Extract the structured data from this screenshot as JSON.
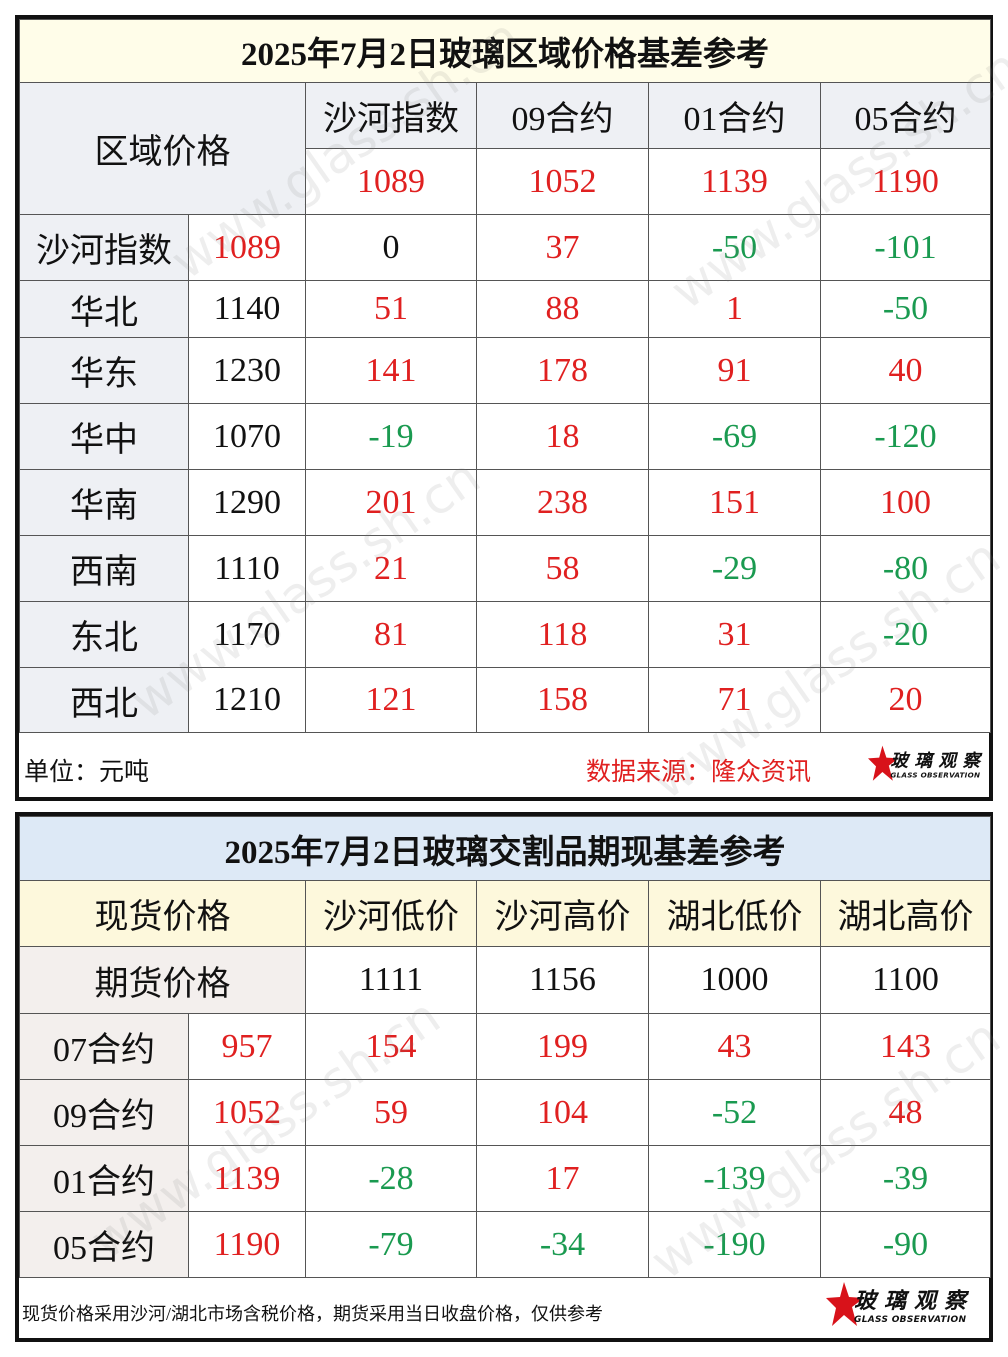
{
  "table1": {
    "title": "2025年7月2日玻璃区域价格基差参考",
    "corner": "区域价格",
    "columns": [
      "沙河指数",
      "09合约",
      "01合约",
      "05合约"
    ],
    "column_prices": [
      1089,
      1052,
      1139,
      1190
    ],
    "rows": [
      {
        "region": "沙河指数",
        "price": 1089,
        "basis": [
          0,
          37,
          -50,
          -101
        ]
      },
      {
        "region": "华北",
        "price": 1140,
        "basis": [
          51,
          88,
          1,
          -50
        ]
      },
      {
        "region": "华东",
        "price": 1230,
        "basis": [
          141,
          178,
          91,
          40
        ]
      },
      {
        "region": "华中",
        "price": 1070,
        "basis": [
          -19,
          18,
          -69,
          -120
        ]
      },
      {
        "region": "华南",
        "price": 1290,
        "basis": [
          201,
          238,
          151,
          100
        ]
      },
      {
        "region": "西南",
        "price": 1110,
        "basis": [
          21,
          58,
          -29,
          -80
        ]
      },
      {
        "region": "东北",
        "price": 1170,
        "basis": [
          81,
          118,
          31,
          -20
        ]
      },
      {
        "region": "西北",
        "price": 1210,
        "basis": [
          121,
          158,
          71,
          20
        ]
      }
    ],
    "unit": "单位：元吨",
    "source": "数据来源：隆众资讯"
  },
  "table2": {
    "title": "2025年7月2日玻璃交割品期现基差参考",
    "corner": "现货价格",
    "columns": [
      "沙河低价",
      "沙河高价",
      "湖北低价",
      "湖北高价"
    ],
    "futures_label": "期货价格",
    "spot_prices": [
      1111,
      1156,
      1000,
      1100
    ],
    "rows": [
      {
        "contract": "07合约",
        "price": 957,
        "basis": [
          154,
          199,
          43,
          143
        ]
      },
      {
        "contract": "09合约",
        "price": 1052,
        "basis": [
          59,
          104,
          -52,
          48
        ]
      },
      {
        "contract": "01合约",
        "price": 1139,
        "basis": [
          -28,
          17,
          -139,
          -39
        ]
      },
      {
        "contract": "05合约",
        "price": 1190,
        "basis": [
          -79,
          -34,
          -190,
          -90
        ]
      }
    ],
    "note": "现货价格采用沙河/湖北市场含税价格，期货采用当日收盘价格，仅供参考"
  },
  "logo": {
    "name": "玻璃观察",
    "subtitle": "GLASS OBSERVATION"
  },
  "watermark": "www.glass.sh.cn"
}
